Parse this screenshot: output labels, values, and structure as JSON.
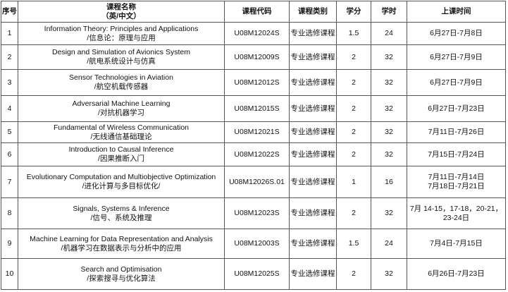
{
  "headers": [
    "序号",
    "课程名称\n（英/中文）",
    "课程代码",
    "课程类别",
    "学分",
    "学时",
    "上课时间"
  ],
  "header_name_line1": "课程名称",
  "header_name_line2": "（英/中文）",
  "rows": [
    {
      "no": "1",
      "en": "Information Theory: Principles and Applications",
      "zh": "/信息论：原理与应用",
      "code": "U08M12024S",
      "type": "专业选修课程",
      "credit": "1.5",
      "hours": "24",
      "time": [
        "6月27日-7月8日"
      ]
    },
    {
      "no": "2",
      "en": "Design and Simulation of Avionics System",
      "zh": "/航电系统设计与仿真",
      "code": "U08M12009S",
      "type": "专业选修课程",
      "credit": "2",
      "hours": "32",
      "time": [
        "6月27日-7月9日"
      ]
    },
    {
      "no": "3",
      "en": "Sensor Technologies in Aviation",
      "zh": "/航空机载传感器",
      "code": "U08M12012S",
      "type": "专业选修课程",
      "credit": "2",
      "hours": "32",
      "time": [
        "6月27日-7月9日"
      ]
    },
    {
      "no": "4",
      "en": "Adversarial Machine Learning",
      "zh": "/对抗机器学习",
      "code": "U08M12015S",
      "type": "专业选修课程",
      "credit": "2",
      "hours": "32",
      "time": [
        "6月27日-7月23日"
      ]
    },
    {
      "no": "5",
      "en": "Fundamental of Wireless Communication",
      "zh": "/无线通信基础理论",
      "code": "U08M12021S",
      "type": "专业选修课程",
      "credit": "2",
      "hours": "32",
      "time": [
        "7月11日-7月26日"
      ]
    },
    {
      "no": "6",
      "en": "Introduction to Causal Inference",
      "zh": "/因果推断入门",
      "code": "U08M12022S",
      "type": "专业选修课程",
      "credit": "2",
      "hours": "32",
      "time": [
        "7月15日-7月24日"
      ]
    },
    {
      "no": "7",
      "en": "Evolutionary Computation and Multiobjective Optimization",
      "zh": "/进化计算与多目标优化/",
      "code": "U08M12026S.01",
      "type": "专业选修课程",
      "credit": "1",
      "hours": "16",
      "time": [
        "7月11日-7月14日",
        "7月18日-7月21日"
      ]
    },
    {
      "no": "8",
      "en": "Signals, Systems & Inference",
      "zh": "/信号、系统及推理",
      "code": "U08M12023S",
      "type": "专业选修课程",
      "credit": "2",
      "hours": "32",
      "time": [
        "7月 14-15，17-18，20-21，",
        "23-24日"
      ]
    },
    {
      "no": "9",
      "en": "Machine Learning for Data Representation and Analysis",
      "zh": "/机器学习在数据表示与分析中的应用",
      "code": "U08M12003S",
      "type": "专业选修课程",
      "credit": "1.5",
      "hours": "24",
      "time": [
        "7月4日-7月15日"
      ]
    },
    {
      "no": "10",
      "en": "Search and Optimisation",
      "zh": "/探索搜寻与优化算法",
      "code": "U08M12025S",
      "type": "专业选修课程",
      "credit": "2",
      "hours": "32",
      "time": [
        "6月26日-7月23日"
      ]
    }
  ]
}
